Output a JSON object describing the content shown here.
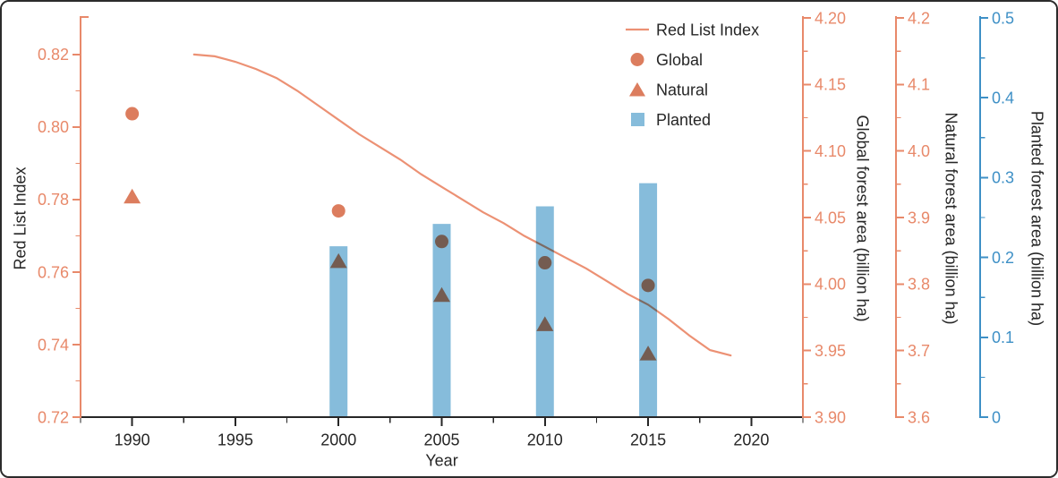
{
  "chart_data": {
    "type": "combo",
    "title": "",
    "background": "#ffffff",
    "x_axis": {
      "label": "Year",
      "min": 1987.5,
      "max": 2022.5,
      "major_ticks": [
        1990,
        1995,
        2000,
        2005,
        2010,
        2015,
        2020
      ],
      "minor_ticks": [
        1987.5,
        1992.5,
        1997.5,
        2002.5,
        2007.5,
        2012.5,
        2017.5,
        2022.5
      ],
      "color": "#262626"
    },
    "y_axes": [
      {
        "id": "rli",
        "title": "Red List Index",
        "side": "left",
        "min": 0.72,
        "max": 0.8301,
        "color": "#E8896A",
        "title_color": "#262626",
        "tick_values": [
          0.72,
          0.74,
          0.76,
          0.78,
          0.8,
          0.82
        ],
        "tick_labels": [
          "0.72",
          "0.74",
          "0.76",
          "0.78",
          "0.80",
          "0.82"
        ],
        "minor_ticks": [
          0.73,
          0.75,
          0.77,
          0.79,
          0.81
        ]
      },
      {
        "id": "global",
        "title": "Global forest area (billion ha)",
        "side": "right",
        "min": 3.9,
        "max": 4.2,
        "color": "#E8896A",
        "title_color": "#262626",
        "tick_values": [
          3.9,
          3.95,
          4.0,
          4.05,
          4.1,
          4.15,
          4.2
        ],
        "tick_labels": [
          "3.90",
          "3.95",
          "4.00",
          "4.05",
          "4.10",
          "4.15",
          "4.20"
        ],
        "minor_ticks": [
          3.925,
          3.975,
          4.025,
          4.075,
          4.125,
          4.175
        ]
      },
      {
        "id": "natural",
        "title": "Natural forest area (billion ha)",
        "side": "right",
        "min": 3.6,
        "max": 4.2,
        "color": "#E8896A",
        "title_color": "#262626",
        "tick_values": [
          3.6,
          3.7,
          3.8,
          3.9,
          4.0,
          4.1,
          4.2
        ],
        "tick_labels": [
          "3.6",
          "3.7",
          "3.8",
          "3.9",
          "4.0",
          "4.1",
          "4.2"
        ],
        "minor_ticks": [
          3.65,
          3.75,
          3.85,
          3.95,
          4.05,
          4.15
        ]
      },
      {
        "id": "planted",
        "title": "Planted forest area (billion ha)",
        "side": "right",
        "min": 0.0,
        "max": 0.5,
        "color": "#3E90C6",
        "title_color": "#262626",
        "tick_values": [
          0,
          0.1,
          0.2,
          0.3,
          0.4,
          0.5
        ],
        "tick_labels": [
          "0",
          "0.1",
          "0.2",
          "0.3",
          "0.4",
          "0.5"
        ],
        "minor_ticks": [
          0.05,
          0.15,
          0.25,
          0.35,
          0.45
        ]
      }
    ],
    "series": [
      {
        "name": "Red List Index",
        "type": "line",
        "axis": "rli",
        "color": "#EC9174",
        "points": [
          [
            1993,
            0.82
          ],
          [
            1994,
            0.8195
          ],
          [
            1995,
            0.818
          ],
          [
            1996,
            0.816
          ],
          [
            1997,
            0.8135
          ],
          [
            1998,
            0.81
          ],
          [
            1999,
            0.806
          ],
          [
            2000,
            0.802
          ],
          [
            2001,
            0.798
          ],
          [
            2002,
            0.7945
          ],
          [
            2003,
            0.791
          ],
          [
            2004,
            0.787
          ],
          [
            2005,
            0.7835
          ],
          [
            2006,
            0.78
          ],
          [
            2007,
            0.7765
          ],
          [
            2008,
            0.7735
          ],
          [
            2009,
            0.77
          ],
          [
            2010,
            0.767
          ],
          [
            2011,
            0.764
          ],
          [
            2012,
            0.761
          ],
          [
            2013,
            0.7575
          ],
          [
            2014,
            0.754
          ],
          [
            2015,
            0.751
          ],
          [
            2016,
            0.747
          ],
          [
            2017,
            0.7425
          ],
          [
            2018,
            0.7385
          ],
          [
            2019,
            0.737
          ]
        ]
      },
      {
        "name": "Global",
        "type": "scatter",
        "marker": "circle",
        "axis": "global",
        "color": "#DC7D5E",
        "x": [
          1990,
          2000,
          2005,
          2010,
          2015
        ],
        "y": [
          4.128,
          4.055,
          4.032,
          4.016,
          3.999
        ]
      },
      {
        "name": "Natural",
        "type": "scatter",
        "marker": "triangle",
        "axis": "natural",
        "color": "#DC7D5E",
        "x": [
          1990,
          2000,
          2005,
          2010,
          2015
        ],
        "y": [
          3.932,
          3.835,
          3.784,
          3.74,
          3.696
        ]
      },
      {
        "name": "Planted",
        "type": "bar",
        "axis": "planted",
        "color": "#86BCDB",
        "x": [
          2000,
          2005,
          2010,
          2015
        ],
        "y": [
          0.214,
          0.242,
          0.264,
          0.293
        ]
      }
    ],
    "legend": {
      "position": "top-right",
      "items": [
        {
          "label": "Red List Index",
          "swatch": "line",
          "color": "#EC9174"
        },
        {
          "label": "Global",
          "swatch": "circle",
          "color": "#DC7D5E"
        },
        {
          "label": "Natural",
          "swatch": "triangle",
          "color": "#DC7D5E"
        },
        {
          "label": "Planted",
          "swatch": "square",
          "color": "#86BCDB"
        }
      ]
    }
  }
}
